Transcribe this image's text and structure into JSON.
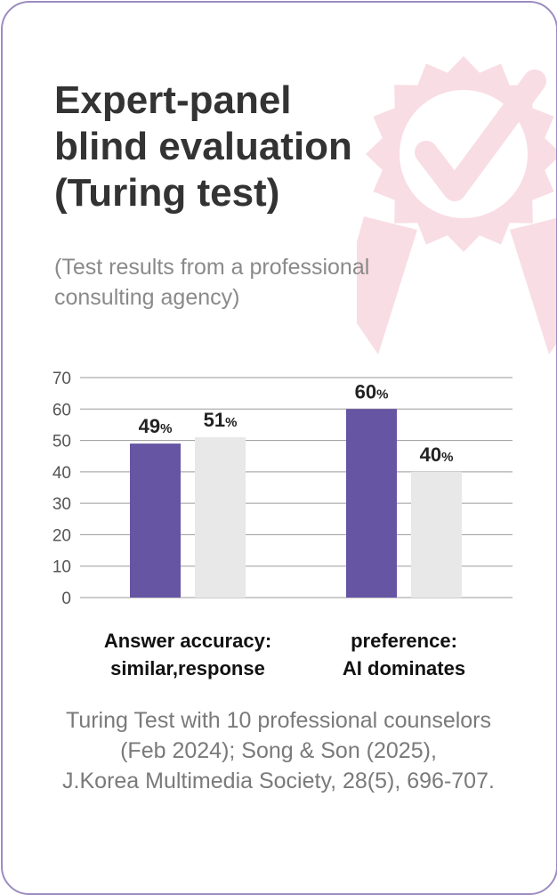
{
  "header": {
    "title_lines": [
      "Expert-panel",
      "blind evaluation",
      "(Turing test)"
    ],
    "subtitle_lines": [
      "(Test results from a professional",
      "consulting agency)"
    ]
  },
  "badge": {
    "icon": "checkmark-award-ribbon-icon",
    "color": "#f9dde4"
  },
  "chart_data": {
    "type": "bar",
    "categories": [
      [
        "Answer accuracy:",
        "similar,response"
      ],
      [
        "preference:",
        "AI dominates"
      ]
    ],
    "series": [
      {
        "values": [
          49,
          60
        ],
        "color": "#6655a3"
      },
      {
        "values": [
          51,
          40
        ],
        "color": "#e8e8e8"
      }
    ],
    "value_labels": [
      [
        "49",
        "60"
      ],
      [
        "51",
        "40"
      ]
    ],
    "value_suffix": "%",
    "ylim": [
      0,
      70
    ],
    "yticks": [
      0,
      10,
      20,
      30,
      40,
      50,
      60,
      70
    ],
    "grid": true
  },
  "footnote": {
    "lines": [
      "Turing Test with 10 professional counselors",
      "(Feb 2024); Song & Son (2025),",
      "J.Korea Multimedia Society, 28(5), 696-707."
    ]
  }
}
